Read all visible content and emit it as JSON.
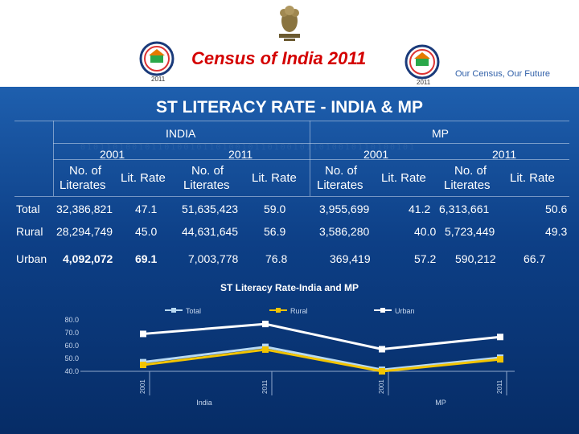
{
  "header": {
    "census_title": "Census of India  2011",
    "tagline": "Our Census,  Our Future",
    "emblem_icon": "national-emblem-icon",
    "logo_icon": "census-logo-icon",
    "logo_year": "2011"
  },
  "slide_title": "ST LITERACY RATE - INDIA & MP",
  "table": {
    "groups": [
      "INDIA",
      "MP"
    ],
    "years": [
      "2001",
      "2011",
      "2001",
      "2011"
    ],
    "headers": [
      [
        "No. of",
        "Literates"
      ],
      [
        "Lit. Rate"
      ],
      [
        "No. of",
        "Literates"
      ],
      [
        "Lit. Rate"
      ],
      [
        "No. of",
        "Literates"
      ],
      [
        "Lit. Rate"
      ],
      [
        "No. of",
        "Literates"
      ],
      [
        "Lit. Rate"
      ]
    ],
    "rows": [
      {
        "label": "Total",
        "cells": [
          "32,386,821",
          "47.1",
          "51,635,423",
          "59.0",
          "3,955,699",
          "41.2",
          "6,313,661",
          "50.6"
        ]
      },
      {
        "label": "Rural",
        "cells": [
          "28,294,749",
          "45.0",
          "44,631,645",
          "56.9",
          "3,586,280",
          "40.0",
          "5,723,449",
          "49.3"
        ]
      },
      {
        "label": "Urban",
        "cells": [
          "4,092,072",
          "69.1",
          "7,003,778",
          "76.8",
          "369,419",
          "57.2",
          "590,212",
          "66.7"
        ]
      }
    ]
  },
  "chart_data": {
    "type": "line",
    "title": "ST  Literacy  Rate-India and MP",
    "x": [
      "2001",
      "2011",
      "2001",
      "2011"
    ],
    "groups": [
      "India",
      "MP"
    ],
    "ytick_labels": [
      "40.0",
      "50.0",
      "60.0",
      "70.0",
      "80.0"
    ],
    "ylim": [
      40,
      80
    ],
    "series": [
      {
        "name": "Total",
        "values": [
          47.1,
          59.0,
          41.2,
          50.6
        ],
        "color": "#b8d9f2"
      },
      {
        "name": "Rural",
        "values": [
          45.0,
          56.9,
          40.0,
          49.3
        ],
        "color": "#f2c400"
      },
      {
        "name": "Urban",
        "values": [
          69.1,
          76.8,
          57.2,
          66.7
        ],
        "color": "#ffffff"
      }
    ]
  }
}
